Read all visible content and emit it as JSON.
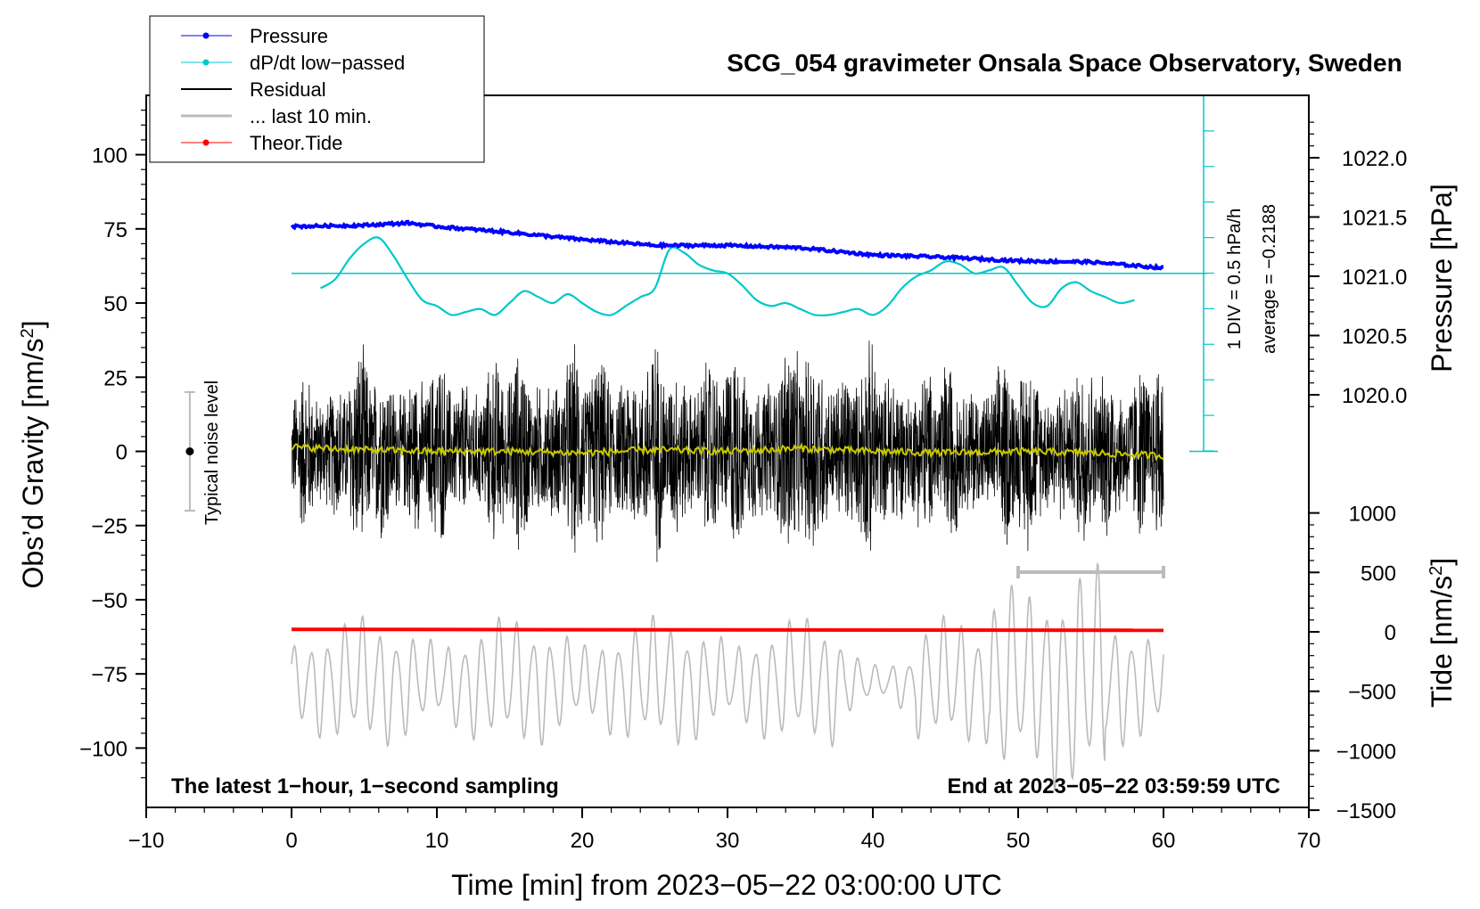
{
  "chart_data": {
    "type": "line",
    "title": "SCG_054 gravimeter Onsala Space Observatory, Sweden",
    "xlabel": "Time [min] from 2023−05−22 03:00:00 UTC",
    "ylabel_left": "Obs’d Gravity [nm/s²]",
    "ylabel_right_pressure": "Pressure [hPa]",
    "ylabel_right_tide": "Tide [nm/s²]",
    "xlim": [
      -10,
      70
    ],
    "ylim_left": [
      -120,
      120
    ],
    "x_ticks": [
      -10,
      0,
      10,
      20,
      30,
      40,
      50,
      60,
      70
    ],
    "x_tick_labels": [
      "−10",
      "0",
      "10",
      "20",
      "30",
      "40",
      "50",
      "60",
      "70"
    ],
    "left_ticks": [
      100,
      75,
      50,
      25,
      0,
      -25,
      -50,
      -75,
      -100
    ],
    "left_tick_labels": [
      "100",
      "75",
      "50",
      "25",
      "0",
      "−25",
      "−50",
      "−75",
      "−100"
    ],
    "pressure_ticks": [
      1022.0,
      1021.5,
      1021.0,
      1020.5,
      1020.0
    ],
    "pressure_tick_labels": [
      "1022.0",
      "1021.5",
      "1021.0",
      "1020.5",
      "1020.0"
    ],
    "tide_ticks": [
      1000,
      500,
      0,
      -500,
      -1000,
      -1500
    ],
    "tide_tick_labels": [
      "1000",
      "500",
      "0",
      "−500",
      "−1000",
      "−1500"
    ],
    "legend": [
      {
        "label": "Pressure",
        "color": "#0000ff",
        "marker": true
      },
      {
        "label": "dP/dt low−passed",
        "color": "#00c8c8",
        "marker": true
      },
      {
        "label": "Residual",
        "color": "#000000",
        "marker": false
      },
      {
        "label": "... last 10 min.",
        "color": "#bbbbbb",
        "marker": false
      },
      {
        "label": "Theor.Tide",
        "color": "#ff0000",
        "marker": true
      }
    ],
    "series": {
      "pressure_hPa": {
        "x": [
          0,
          5,
          8,
          10,
          15,
          20,
          25,
          30,
          35,
          40,
          45,
          50,
          55,
          60
        ],
        "values": [
          1021.42,
          1021.43,
          1021.45,
          1021.42,
          1021.37,
          1021.31,
          1021.26,
          1021.26,
          1021.24,
          1021.18,
          1021.16,
          1021.13,
          1021.12,
          1021.07
        ]
      },
      "dpdt_lowpassed_gravity_units": {
        "x": [
          2,
          3,
          4,
          5,
          6,
          7,
          8,
          9,
          10,
          11,
          12,
          13,
          14,
          15,
          16,
          17,
          18,
          19,
          20,
          21,
          22,
          23,
          24,
          25,
          26,
          27,
          28,
          29,
          30,
          31,
          32,
          33,
          34,
          35,
          36,
          37,
          38,
          39,
          40,
          41,
          42,
          43,
          44,
          45,
          46,
          47,
          48,
          49,
          50,
          51,
          52,
          53,
          54,
          55,
          56,
          57,
          58
        ],
        "values": [
          55,
          58,
          65,
          70,
          72,
          66,
          58,
          51,
          49,
          46,
          47,
          48,
          46,
          50,
          54,
          52,
          50,
          53,
          50,
          47,
          46,
          49,
          52,
          55,
          68,
          67,
          63,
          61,
          60,
          56,
          51,
          49,
          50,
          48,
          46,
          46,
          47,
          48,
          46,
          49,
          55,
          59,
          61,
          64,
          63,
          60,
          61,
          62,
          56,
          50,
          49,
          55,
          57,
          54,
          52,
          50,
          51
        ]
      },
      "residual_envelope": {
        "x": [
          0,
          5,
          10,
          15,
          20,
          25,
          30,
          35,
          40,
          45,
          50,
          55,
          60
        ],
        "values": [
          30,
          40,
          35,
          38,
          40,
          42,
          38,
          45,
          40,
          35,
          38,
          36,
          40
        ]
      },
      "residual_lowpassed": {
        "x": [
          0,
          5,
          10,
          15,
          20,
          25,
          30,
          35,
          40,
          45,
          50,
          55,
          60
        ],
        "values": [
          1.5,
          0.5,
          0,
          0,
          -0.5,
          0.5,
          0,
          1,
          0,
          -0.5,
          0,
          -0.5,
          -1.5
        ]
      },
      "theoretical_tide_gravity_units": {
        "x": [
          0,
          60
        ],
        "values": [
          -60,
          -60.3
        ]
      },
      "dpdt_reference_level": 60,
      "dpdt_average_text": "average = −0.2188",
      "dpdt_scale_text": "1 DIV = 0.5 hPa/h"
    },
    "annotations": {
      "noise_label": "Typical noise level",
      "noise_range": [
        -20,
        20
      ],
      "bottom_left": "The latest 1−hour, 1−second sampling",
      "bottom_right": "End at 2023−05−22 03:59:59 UTC",
      "last10_bar_range": [
        50,
        60
      ]
    },
    "colors": {
      "pressure": "#0000ff",
      "dpdt": "#00c8c8",
      "residual": "#000000",
      "residual_lp": "#c8c800",
      "last10": "#bbbbbb",
      "tide": "#ff0000",
      "axis": "#000000"
    }
  }
}
